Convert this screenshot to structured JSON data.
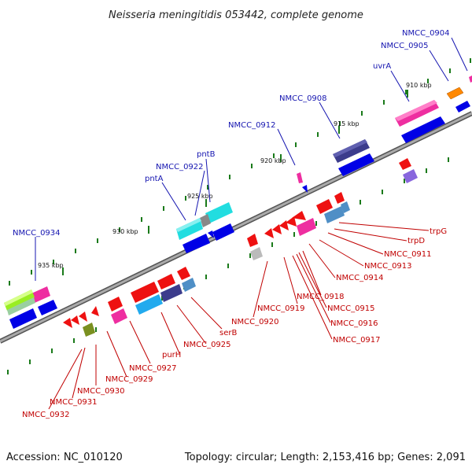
{
  "title": "Neisseria meningitidis 053442, complete genome",
  "footer": {
    "accession": "Accession: NC_010120",
    "summary": "Topology: circular; Length: 2,153,416 bp; Genes: 2,091"
  },
  "ruler_labels": [
    "910 kbp",
    "915 kbp",
    "920 kbp",
    "925 kbp",
    "930 kbp",
    "935 kbp"
  ],
  "top_labels": [
    "NMCC_0904",
    "NMCC_0905",
    "uvrA",
    "NMCC_0908",
    "NMCC_0912",
    "pntB",
    "NMCC_0922",
    "pntA",
    "NMCC_0934"
  ],
  "bottom_labels": [
    "trpG",
    "trpD",
    "NMCC_0911",
    "NMCC_0913",
    "NMCC_0914",
    "NMCC_0918",
    "NMCC_0915",
    "NMCC_0916",
    "NMCC_0917",
    "NMCC_0919",
    "NMCC_0920",
    "serB",
    "NMCC_0925",
    "purH",
    "NMCC_0927",
    "NMCC_0929",
    "NMCC_0930",
    "NMCC_0931",
    "NMCC_0932"
  ],
  "colors": {
    "backbone": "#888888",
    "forward_label": "#1515b0",
    "reverse_label": "#c00000",
    "tick": "#1a7a1a",
    "blue_gene": "#0000e6",
    "red_gene": "#ee1111",
    "magenta_gene": "#ee2ea0",
    "cyan_gene": "#22dde0",
    "navy_gene": "#3c3c8c",
    "orange_gene": "#ff8800",
    "lime_gene": "#99ee22",
    "olive_gene": "#7a9020",
    "grey_gene": "#bbbbbb",
    "steel_gene": "#4f8fc6",
    "lavender_gene": "#8866dd",
    "skyblue_gene": "#22aaee"
  }
}
